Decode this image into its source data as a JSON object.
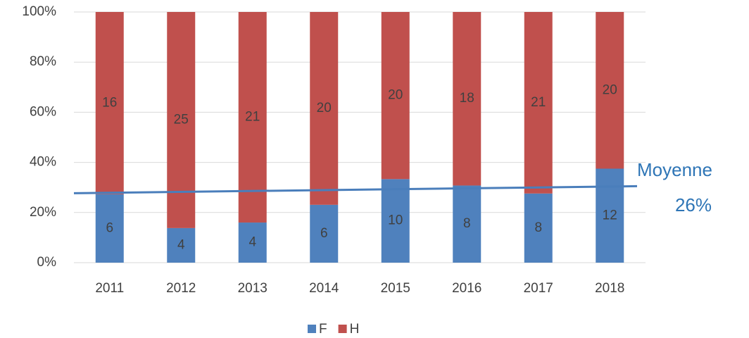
{
  "chart_data": {
    "type": "bar",
    "stacking": "percent",
    "categories": [
      "2011",
      "2012",
      "2013",
      "2014",
      "2015",
      "2016",
      "2017",
      "2018"
    ],
    "series": [
      {
        "name": "F",
        "color": "#4f81bd",
        "values": [
          6,
          4,
          4,
          6,
          10,
          8,
          8,
          12
        ]
      },
      {
        "name": "H",
        "color": "#c0504d",
        "values": [
          16,
          25,
          21,
          20,
          20,
          18,
          21,
          20
        ]
      }
    ],
    "ylim": [
      0,
      100
    ],
    "yticks": [
      {
        "value": 0,
        "label": "0%"
      },
      {
        "value": 20,
        "label": "20%"
      },
      {
        "value": 40,
        "label": "40%"
      },
      {
        "value": 60,
        "label": "60%"
      },
      {
        "value": 80,
        "label": "80%"
      },
      {
        "value": 100,
        "label": "100%"
      }
    ],
    "grid": true,
    "legend": "bottom",
    "trendline": {
      "color": "#4a7ebb",
      "values": [
        27.7,
        30.5
      ]
    },
    "annotation": [
      "Moyenne",
      "26%"
    ]
  }
}
